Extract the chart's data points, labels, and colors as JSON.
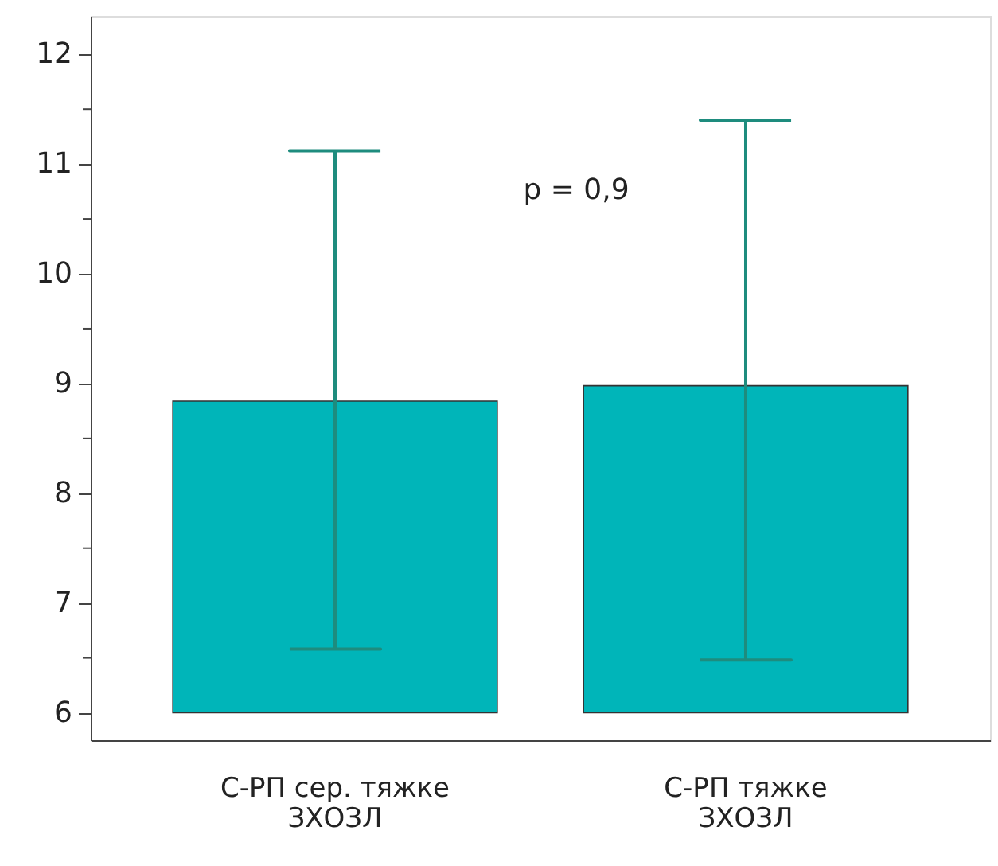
{
  "chart_data": {
    "type": "bar",
    "categories": [
      "С-РП сер. тяжке\nЗХОЗЛ",
      "С-РП тяжке\nЗХОЗЛ"
    ],
    "base": [
      6,
      6
    ],
    "values": [
      2.84,
      2.98
    ],
    "errors": [
      [
        6.58,
        11.12
      ],
      [
        6.48,
        11.4
      ]
    ],
    "color": "#00b5b9",
    "ylim": [
      5.75,
      12.35
    ],
    "yticks": [
      6,
      {
        "value": 6.5,
        "label": null
      },
      7,
      {
        "value": 7.5,
        "label": null
      },
      8,
      {
        "value": 8.5,
        "label": null
      },
      9,
      {
        "value": 9.5,
        "label": null
      },
      10,
      {
        "value": 10.5,
        "label": null
      },
      11,
      {
        "value": 11.5,
        "label": null
      },
      12
    ],
    "grid": false,
    "annotations": [
      "p = 0,9"
    ]
  }
}
